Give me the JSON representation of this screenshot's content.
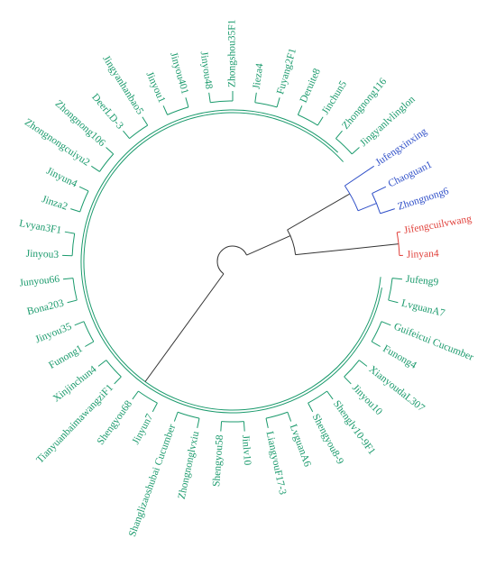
{
  "groups": [
    {
      "color": "#1a9a6c",
      "leaves": [
        "Jufeng9",
        "LvguanA7",
        "Guifeicui Cucumber",
        "Funong4",
        "XianyoudaL307",
        "Jinyou10",
        "Shenglv10-9F1",
        "Shengyou8-9",
        "LvguanA6",
        "LiangyouF17-3",
        "Jinlv10",
        "Shengyou58",
        "Zhongnonglvxiu",
        "Shanglizaoshubai Cucumber",
        "Jinyun7",
        "Shengyou68",
        "TianyuanbaimawangziF1",
        "Xinjinchun4",
        "Funong1",
        "Jinyou35",
        "Bona203",
        "Junyou66",
        "Jinyou3",
        "Lvyan3F1",
        "Jinza2",
        "Jinyun4",
        "Zhongnongcuiyu2",
        "Zhongnong106",
        "DeerLD-3",
        "Jingyanhanbao5",
        "Jinyou1",
        "Jinyou401",
        "Jinyou48",
        "Zhongshou35F1",
        "Jieza4",
        "Fuyang2F1",
        "Deruite8",
        "Jinchun5",
        "Zhongnong116",
        "Jingyanlvlinglon"
      ]
    },
    {
      "color": "#2f4fc8",
      "leaves": [
        "Jufengxinxing",
        "Chaoguan1",
        "Zhongnong6"
      ]
    },
    {
      "color": "#e0403a",
      "leaves": [
        "Jifengcuilvwang",
        "Jinyan4"
      ]
    }
  ]
}
